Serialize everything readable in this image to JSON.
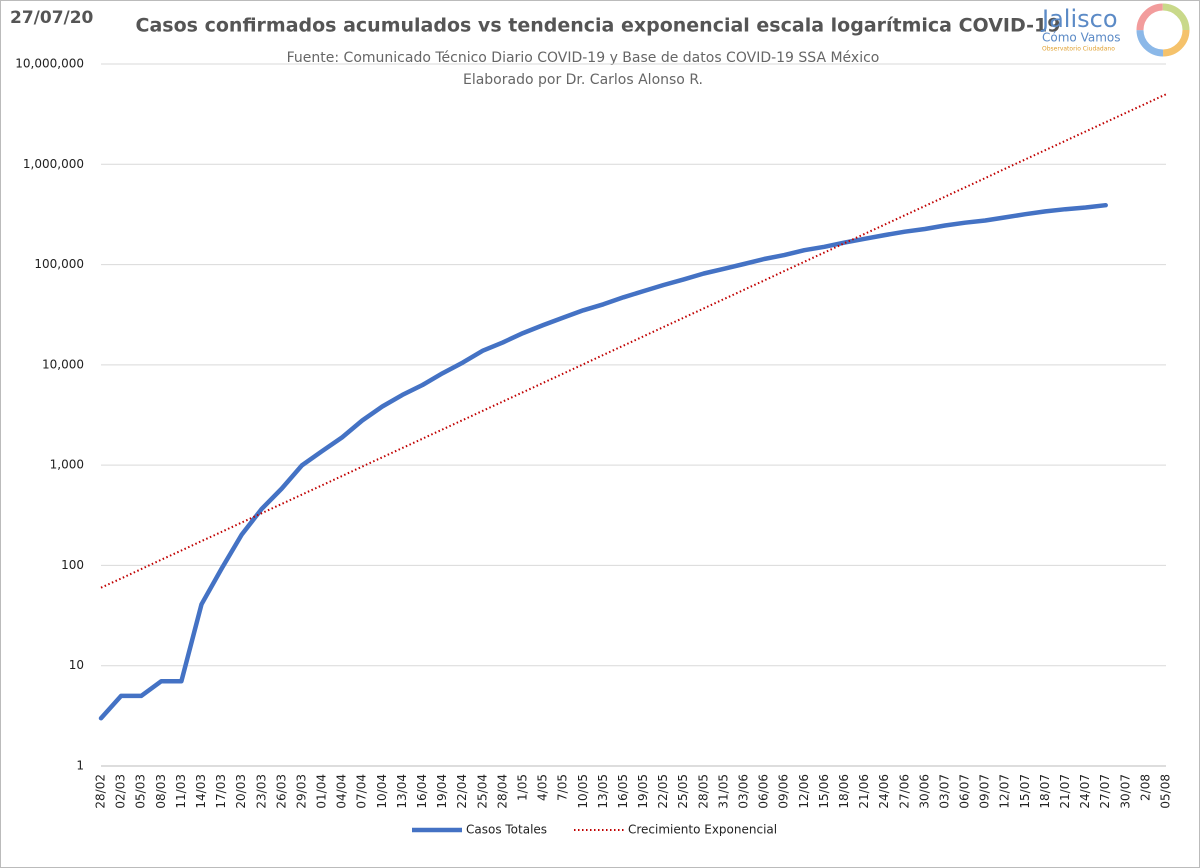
{
  "date_stamp": "27/07/20",
  "logo": {
    "name": "Jalisco",
    "tagline": "Cómo Vamos",
    "subtitle": "Observatorio Ciudadano"
  },
  "chart_data": {
    "type": "line",
    "title": "Casos confirmados acumulados vs tendencia exponencial escala logarítmica COVID-19",
    "subtitle": "Fuente: Comunicado Técnico Diario COVID-19 y Base de datos COVID-19 SSA México",
    "author": "Elaborado por Dr. Carlos Alonso R.",
    "log_scale": true,
    "grid": true,
    "legend": "bottom",
    "categories": [
      "28/02",
      "02/03",
      "05/03",
      "08/03",
      "11/03",
      "14/03",
      "17/03",
      "20/03",
      "23/03",
      "26/03",
      "29/03",
      "01/04",
      "04/04",
      "07/04",
      "10/04",
      "13/04",
      "16/04",
      "19/04",
      "22/04",
      "25/04",
      "28/04",
      "1/05",
      "4/05",
      "7/05",
      "10/05",
      "13/05",
      "16/05",
      "19/05",
      "22/05",
      "25/05",
      "28/05",
      "31/05",
      "03/06",
      "06/06",
      "09/06",
      "12/06",
      "15/06",
      "18/06",
      "21/06",
      "24/06",
      "27/06",
      "30/06",
      "03/07",
      "06/07",
      "09/07",
      "12/07",
      "15/07",
      "18/07",
      "21/07",
      "24/07",
      "27/07",
      "30/07",
      "2/08",
      "05/08"
    ],
    "series": [
      {
        "name": "Casos Totales",
        "color": "#4472c4",
        "style": "solid",
        "values": [
          3,
          5,
          5,
          7,
          7,
          41,
          93,
          203,
          367,
          585,
          993,
          1378,
          1890,
          2785,
          3844,
          5014,
          6297,
          8261,
          10544,
          13842,
          16752,
          20739,
          24905,
          29616,
          35022,
          40186,
          47144,
          54346,
          62527,
          71105,
          81400,
          90664,
          101238,
          113619,
          124301,
          139196,
          150264,
          165455,
          180545,
          196847,
          212802,
          226089,
          245251,
          261750,
          275003,
          295268,
          317635,
          338913,
          356255,
          370712,
          390516,
          null,
          null,
          null
        ]
      },
      {
        "name": "Crecimiento Exponencial",
        "color": "#c00000",
        "style": "dotted",
        "values": [
          60,
          74,
          92,
          114,
          141,
          175,
          216,
          268,
          332,
          411,
          509,
          630,
          780,
          966,
          1197,
          1482,
          1834,
          2271,
          2813,
          3483,
          4313,
          5340,
          6612,
          8188,
          10140,
          12560,
          15550,
          19260,
          23850,
          29530,
          36560,
          45280,
          56080,
          69440,
          85990,
          106500,
          131900,
          163300,
          202200,
          250400,
          310000,
          383900,
          475400,
          588700,
          729000,
          902800,
          1118000,
          1384000,
          1714000,
          2123000,
          2629000,
          3256000,
          4030000,
          4990000
        ]
      }
    ],
    "ylim": [
      1,
      10000000
    ],
    "yticks": [
      1,
      10,
      100,
      {
        "value": 1000,
        "label": "1,000"
      },
      {
        "value": 10000,
        "label": "10,000"
      },
      {
        "value": 100000,
        "label": "100,000"
      },
      {
        "value": 1000000,
        "label": "1,000,000"
      },
      {
        "value": 10000000,
        "label": "10,000,000"
      }
    ]
  }
}
